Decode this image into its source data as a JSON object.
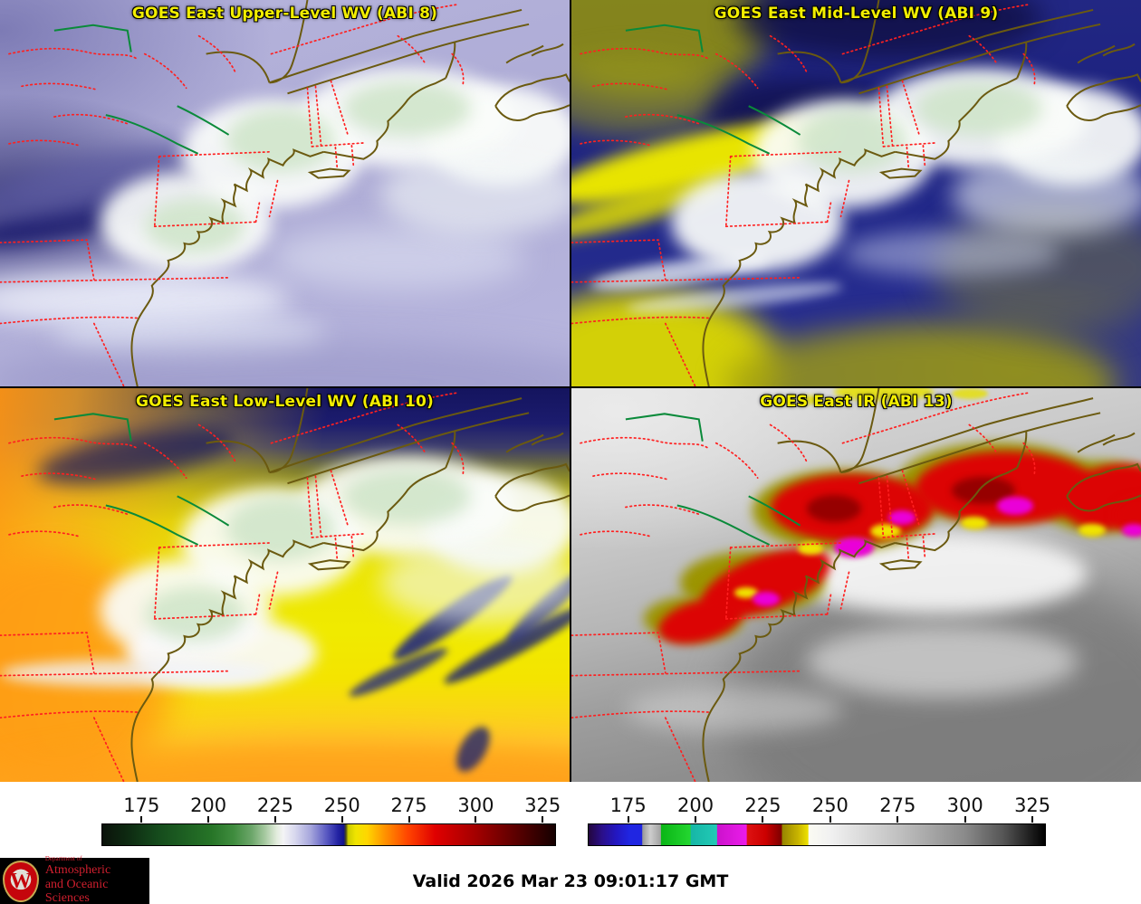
{
  "panels": [
    {
      "id": "abi8",
      "title": "GOES East Upper-Level WV (ABI 8)"
    },
    {
      "id": "abi9",
      "title": "GOES East Mid-Level WV (ABI 9)"
    },
    {
      "id": "abi10",
      "title": "GOES East Low-Level WV (ABI 10)"
    },
    {
      "id": "abi13",
      "title": "GOES East IR (ABI 13)"
    }
  ],
  "title_style": {
    "color": "#f2ee00",
    "outline_color": "#000000"
  },
  "map_overlay": {
    "state_border_color": "#ff2020",
    "coastline_color": "#6b5a10",
    "lake_shore_color": "#0a8a3a"
  },
  "colorbars": [
    {
      "name": "wv-temperature-scale",
      "range": [
        160,
        330
      ],
      "ticks": [
        175,
        200,
        225,
        250,
        275,
        300,
        325
      ],
      "stops": [
        {
          "p": 0,
          "c": "#0a120a"
        },
        {
          "p": 6,
          "c": "#0e2c12"
        },
        {
          "p": 12,
          "c": "#154a1c"
        },
        {
          "p": 18,
          "c": "#1d5f22"
        },
        {
          "p": 24,
          "c": "#267427"
        },
        {
          "p": 29,
          "c": "#3f8c3e"
        },
        {
          "p": 33,
          "c": "#6ca66a"
        },
        {
          "p": 36,
          "c": "#a8caa2"
        },
        {
          "p": 38.5,
          "c": "#e2ecdc"
        },
        {
          "p": 40,
          "c": "#f4f4f6"
        },
        {
          "p": 42.5,
          "c": "#d8d8ee"
        },
        {
          "p": 46,
          "c": "#a6a6dc"
        },
        {
          "p": 49.5,
          "c": "#5a5ac2"
        },
        {
          "p": 52,
          "c": "#2424a4"
        },
        {
          "p": 53.3,
          "c": "#12128c"
        },
        {
          "p": 53.8,
          "c": "#4a4a14"
        },
        {
          "p": 54.3,
          "c": "#cccc00"
        },
        {
          "p": 56,
          "c": "#f0e400"
        },
        {
          "p": 58.5,
          "c": "#ffd600"
        },
        {
          "p": 62,
          "c": "#ff9900"
        },
        {
          "p": 67.5,
          "c": "#ff4400"
        },
        {
          "p": 73.5,
          "c": "#e00000"
        },
        {
          "p": 82.5,
          "c": "#a30000"
        },
        {
          "p": 91,
          "c": "#5e0000"
        },
        {
          "p": 100,
          "c": "#150000"
        }
      ]
    },
    {
      "name": "ir-temperature-scale",
      "range": [
        160,
        330
      ],
      "ticks": [
        175,
        200,
        225,
        250,
        275,
        300,
        325
      ],
      "stops": [
        {
          "p": 0,
          "c": "#23063e"
        },
        {
          "p": 3,
          "c": "#2a0f8a"
        },
        {
          "p": 6,
          "c": "#2317c0"
        },
        {
          "p": 9,
          "c": "#2026e2"
        },
        {
          "p": 11.7,
          "c": "#2026e2"
        },
        {
          "p": 11.8,
          "c": "#989898"
        },
        {
          "p": 13.5,
          "c": "#cdcdcd"
        },
        {
          "p": 15.8,
          "c": "#a2a2a2"
        },
        {
          "p": 15.9,
          "c": "#0ab616"
        },
        {
          "p": 22.3,
          "c": "#24d630"
        },
        {
          "p": 22.4,
          "c": "#16b6a6"
        },
        {
          "p": 28.1,
          "c": "#22cab6"
        },
        {
          "p": 28.2,
          "c": "#cc12cc"
        },
        {
          "p": 34.6,
          "c": "#ea1cea"
        },
        {
          "p": 34.7,
          "c": "#de1212"
        },
        {
          "p": 38.8,
          "c": "#cc0000"
        },
        {
          "p": 42.3,
          "c": "#7c0000"
        },
        {
          "p": 42.4,
          "c": "#968400"
        },
        {
          "p": 46,
          "c": "#cab600"
        },
        {
          "p": 48.1,
          "c": "#eee200"
        },
        {
          "p": 48.2,
          "c": "#fbfbf2"
        },
        {
          "p": 53,
          "c": "#f1f1f1"
        },
        {
          "p": 67.5,
          "c": "#c2c2c2"
        },
        {
          "p": 82.5,
          "c": "#8a8a8a"
        },
        {
          "p": 91,
          "c": "#545454"
        },
        {
          "p": 100,
          "c": "#000000"
        }
      ]
    }
  ],
  "footer": {
    "valid_time": "Valid 2026 Mar 23 09:01:17 GMT",
    "logo": {
      "letter": "W",
      "dept": "Department of",
      "line1": "Atmospheric",
      "line2": "and Oceanic Sciences"
    }
  }
}
